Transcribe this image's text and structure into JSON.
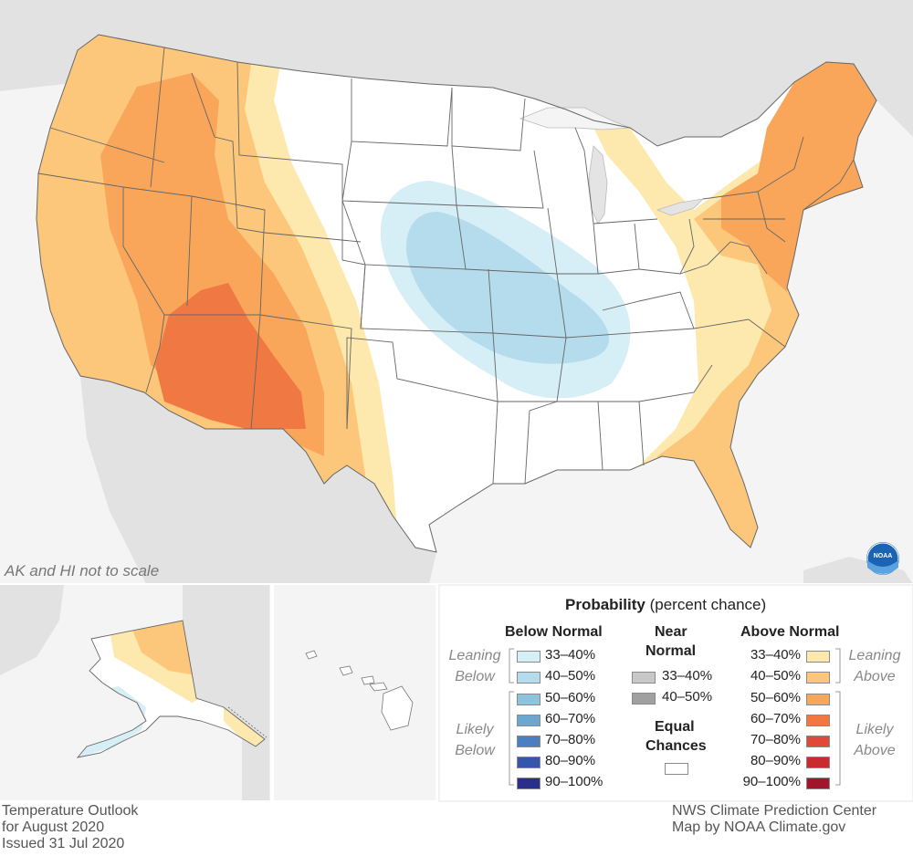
{
  "note_scale": "AK and HI not to scale",
  "legend": {
    "title_bold": "Probability",
    "title_rest": "(percent chance)",
    "below_header": "Below Normal",
    "near_header_line1": "Near",
    "near_header_line2": "Normal",
    "above_header": "Above Normal",
    "equal_line1": "Equal",
    "equal_line2": "Chances",
    "leaning": "Leaning",
    "below_word": "Below",
    "likely": "Likely",
    "above_word": "Above",
    "below_bins": [
      {
        "label": "33–40%",
        "color": "#d6eef6"
      },
      {
        "label": "40–50%",
        "color": "#b4dcec"
      },
      {
        "label": "50–60%",
        "color": "#8cc4de"
      },
      {
        "label": "60–70%",
        "color": "#6ca7d0"
      },
      {
        "label": "70–80%",
        "color": "#4a7fc1"
      },
      {
        "label": "80–90%",
        "color": "#3556ab"
      },
      {
        "label": "90–100%",
        "color": "#2a2e8c"
      }
    ],
    "near_bins": [
      {
        "label": "33–40%",
        "color": "#c8c8c8"
      },
      {
        "label": "40–50%",
        "color": "#a0a0a0"
      }
    ],
    "above_bins": [
      {
        "label": "33–40%",
        "color": "#fde8ae"
      },
      {
        "label": "40–50%",
        "color": "#fcc77a"
      },
      {
        "label": "50–60%",
        "color": "#f9a65a"
      },
      {
        "label": "60–70%",
        "color": "#f07842"
      },
      {
        "label": "70–80%",
        "color": "#e0493a"
      },
      {
        "label": "80–90%",
        "color": "#c92a2e"
      },
      {
        "label": "90–100%",
        "color": "#a3132a"
      }
    ],
    "equal_color": "#ffffff"
  },
  "footer": {
    "left_line1": "Temperature Outlook",
    "left_line2": "for August 2020",
    "left_line3": "Issued 31 Jul 2020",
    "right_line1": "NWS Climate Prediction Center",
    "right_line2": "Map by NOAA Climate.gov"
  },
  "logo_text": "NOAA",
  "colors": {
    "background_land": "#e2e2e2",
    "water": "#f4f4f4",
    "state_lines": "#666666"
  }
}
